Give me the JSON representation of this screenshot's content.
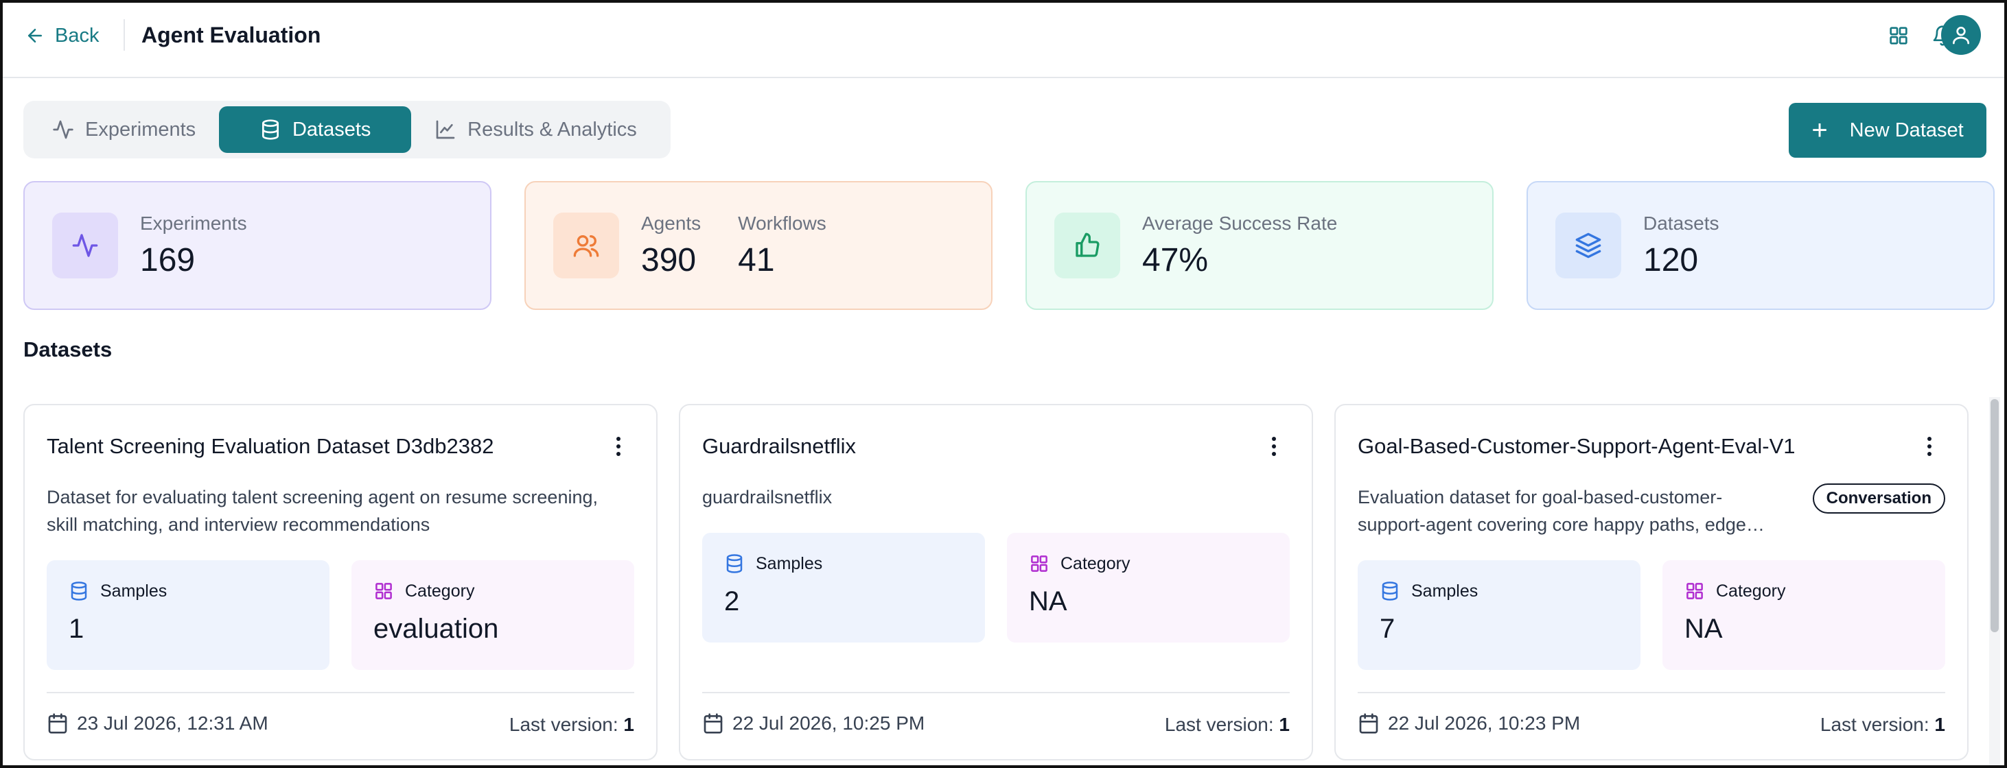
{
  "header": {
    "back_label": "Back",
    "title": "Agent Evaluation",
    "icons": [
      "grid-icon",
      "bell-icon",
      "user-icon"
    ]
  },
  "tabs": [
    {
      "label": "Experiments",
      "icon": "activity-icon",
      "active": false
    },
    {
      "label": "Datasets",
      "icon": "database-icon",
      "active": true
    },
    {
      "label": "Results & Analytics",
      "icon": "line-chart-icon",
      "active": false
    }
  ],
  "new_dataset_label": "New Dataset",
  "stats": {
    "experiments": {
      "label": "Experiments",
      "value": "169"
    },
    "agents": {
      "label": "Agents",
      "value": "390"
    },
    "workflows": {
      "label": "Workflows",
      "value": "41"
    },
    "success": {
      "label": "Average Success Rate",
      "value": "47%"
    },
    "datasets": {
      "label": "Datasets",
      "value": "120"
    }
  },
  "section_title": "Datasets",
  "datasets": [
    {
      "title": "Talent Screening Evaluation Dataset D3db2382",
      "description": "Dataset for evaluating talent screening agent on resume screening, skill matching, and interview recommendations",
      "samples_label": "Samples",
      "samples": "1",
      "category_label": "Category",
      "category": "evaluation",
      "date": "23 Jul 2026, 12:31 AM",
      "version_label": "Last version:",
      "version": "1"
    },
    {
      "title": "Guardrailsnetflix",
      "description": "guardrailsnetflix",
      "samples_label": "Samples",
      "samples": "2",
      "category_label": "Category",
      "category": "NA",
      "date": "22 Jul 2026, 10:25 PM",
      "version_label": "Last version:",
      "version": "1"
    },
    {
      "title": "Goal-Based-Customer-Support-Agent-Eval-V1",
      "description": "Evaluation dataset for goal-based-customer-support-agent covering core happy paths, edge…",
      "badge": "Conversation",
      "samples_label": "Samples",
      "samples": "7",
      "category_label": "Category",
      "category": "NA",
      "date": "22 Jul 2026, 10:23 PM",
      "version_label": "Last version:",
      "version": "1"
    }
  ],
  "colors": {
    "accent": "#177a84",
    "experiments": "#6e56e5",
    "agents": "#ee7b37",
    "success": "#1a9c64",
    "datasets": "#3476e0"
  }
}
